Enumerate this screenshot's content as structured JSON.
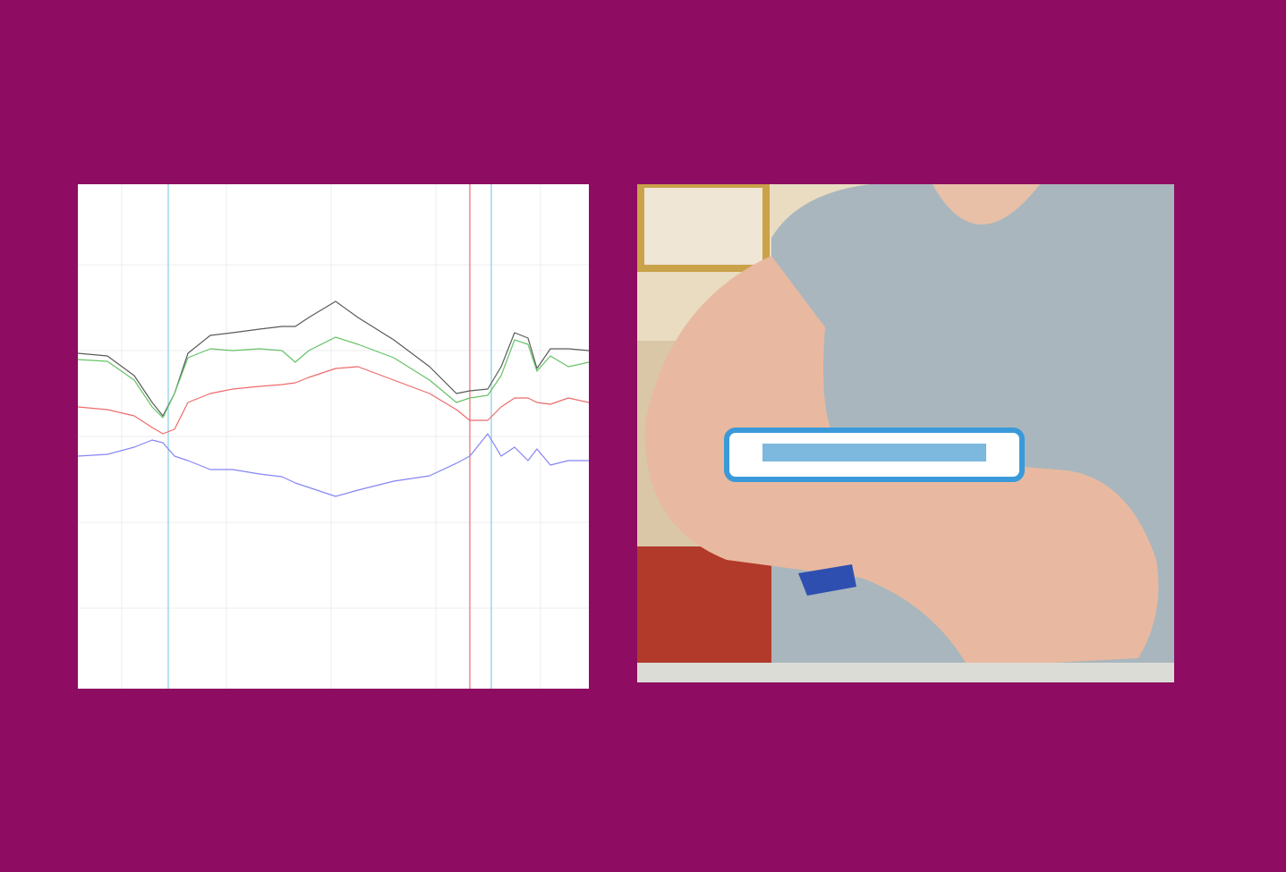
{
  "chart_data": {
    "type": "line",
    "x": [
      0,
      33,
      63,
      83,
      95,
      108,
      123,
      148,
      173,
      203,
      228,
      243,
      258,
      288,
      313,
      353,
      393,
      423,
      438,
      458,
      473,
      488,
      503,
      513,
      528,
      548,
      571
    ],
    "series": [
      {
        "color": "#5a5a5a",
        "values": [
          375,
          372,
          350,
          320,
          305,
          330,
          375,
          395,
          398,
          402,
          405,
          405,
          415,
          433,
          415,
          390,
          360,
          330,
          333,
          335,
          360,
          398,
          392,
          358,
          380,
          380,
          378
        ]
      },
      {
        "color": "#66c266",
        "values": [
          368,
          366,
          345,
          315,
          303,
          330,
          370,
          380,
          378,
          380,
          378,
          365,
          378,
          393,
          385,
          370,
          345,
          320,
          325,
          328,
          350,
          390,
          385,
          355,
          372,
          360,
          365
        ]
      },
      {
        "color": "#ee6a6a",
        "values": [
          315,
          312,
          305,
          292,
          285,
          290,
          320,
          330,
          335,
          338,
          340,
          342,
          348,
          358,
          360,
          345,
          330,
          312,
          300,
          300,
          315,
          325,
          325,
          320,
          318,
          325,
          320
        ]
      },
      {
        "color": "#8585f5",
        "values": [
          260,
          262,
          270,
          278,
          275,
          260,
          255,
          245,
          245,
          240,
          237,
          230,
          225,
          215,
          222,
          232,
          238,
          252,
          260,
          285,
          260,
          270,
          255,
          268,
          250,
          255,
          255
        ]
      }
    ],
    "xlim": [
      0,
      571
    ],
    "ylim": [
      0,
      564
    ],
    "xticks": [
      49,
      166,
      283,
      400,
      517
    ],
    "yticks": [
      90,
      186,
      282,
      378,
      474
    ],
    "grid": true,
    "markers": [
      {
        "x": 101,
        "color": "#9fd6ea"
      },
      {
        "x": 438,
        "color": "#ee8a8a"
      },
      {
        "x": 462,
        "color": "#9fd6ea"
      }
    ]
  }
}
